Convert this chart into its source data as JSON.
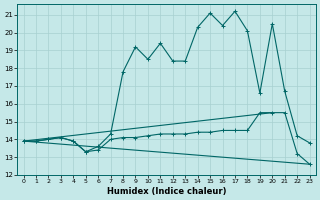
{
  "xlabel": "Humidex (Indice chaleur)",
  "bg_color": "#c5e8e8",
  "grid_color": "#a8d0d0",
  "line_color": "#006666",
  "xlim": [
    -0.5,
    23.5
  ],
  "ylim": [
    12,
    21.6
  ],
  "yticks": [
    12,
    13,
    14,
    15,
    16,
    17,
    18,
    19,
    20,
    21
  ],
  "xticks": [
    0,
    1,
    2,
    3,
    4,
    5,
    6,
    7,
    8,
    9,
    10,
    11,
    12,
    13,
    14,
    15,
    16,
    17,
    18,
    19,
    20,
    21,
    22,
    23
  ],
  "main_curve_x": [
    0,
    1,
    2,
    3,
    4,
    5,
    6,
    7,
    8,
    9,
    10,
    11,
    12,
    13,
    14,
    15,
    16,
    17,
    18,
    19,
    20,
    21,
    22,
    23
  ],
  "main_curve_y": [
    13.9,
    13.9,
    14.0,
    14.1,
    13.9,
    13.3,
    13.6,
    14.3,
    17.8,
    19.2,
    18.5,
    19.4,
    18.4,
    18.4,
    20.3,
    21.1,
    20.4,
    21.2,
    20.1,
    16.6,
    20.5,
    16.7,
    14.2,
    13.8
  ],
  "flat_curve_x": [
    0,
    1,
    2,
    3,
    4,
    5,
    6,
    7,
    8,
    9,
    10,
    11,
    12,
    13,
    14,
    15,
    16,
    17,
    18,
    19,
    20,
    21,
    22,
    23
  ],
  "flat_curve_y": [
    13.9,
    13.9,
    14.0,
    14.1,
    13.9,
    13.3,
    13.4,
    14.0,
    14.1,
    14.1,
    14.2,
    14.3,
    14.3,
    14.3,
    14.4,
    14.4,
    14.5,
    14.5,
    14.5,
    15.5,
    15.5,
    15.5,
    13.2,
    12.6
  ],
  "upper_line_x": [
    0,
    20
  ],
  "upper_line_y": [
    13.9,
    15.5
  ],
  "lower_line_x": [
    0,
    23
  ],
  "lower_line_y": [
    13.9,
    12.6
  ]
}
